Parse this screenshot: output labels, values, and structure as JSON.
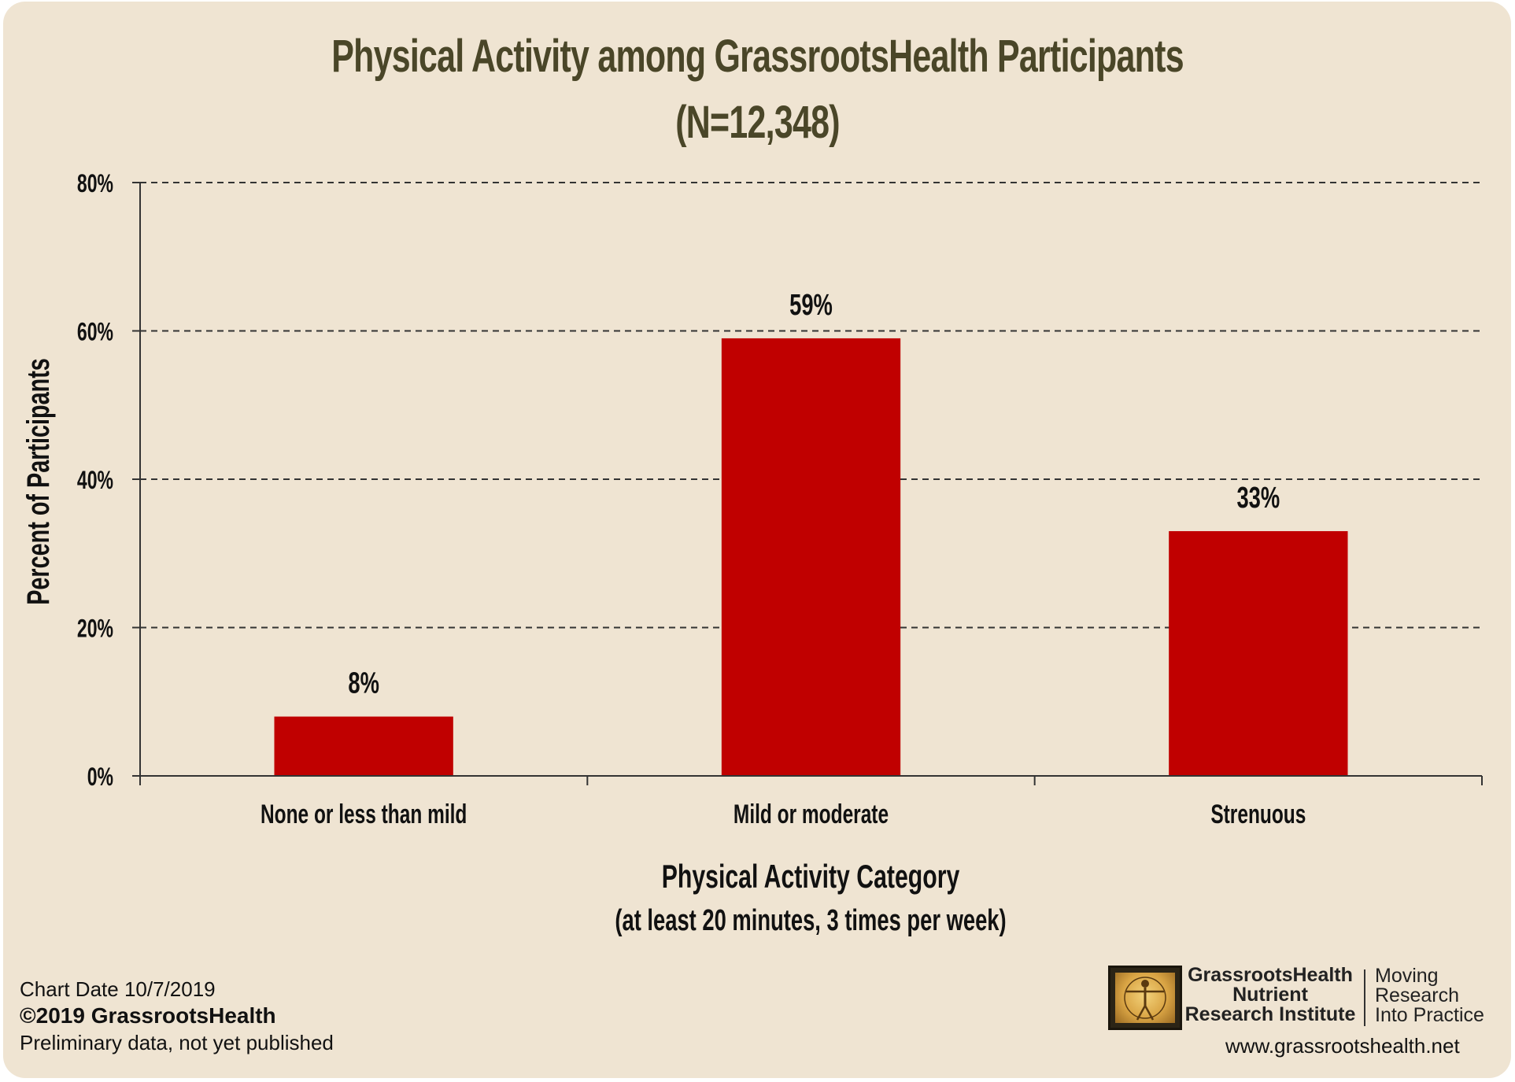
{
  "chart_data": {
    "type": "bar",
    "title": "Physical Activity among GrassrootsHealth Participants",
    "subtitle": "(N=12,348)",
    "categories": [
      "None or less than mild",
      "Mild or moderate",
      "Strenuous"
    ],
    "values": [
      8,
      59,
      33
    ],
    "data_labels": [
      "8%",
      "59%",
      "33%"
    ],
    "ylabel": "Percent of Participants",
    "xlabel": "Physical Activity Category",
    "xlabel_sub": "(at least 20 minutes, 3 times per week)",
    "ylim": [
      0,
      80
    ],
    "yticks": [
      0,
      20,
      40,
      60,
      80
    ],
    "ytick_labels": [
      "0%",
      "20%",
      "40%",
      "60%",
      "80%"
    ],
    "grid": "horizontal dashed",
    "bar_color": "#c00000",
    "background_color": "#efe4d2"
  },
  "footer": {
    "chart_date": "Chart Date  10/7/2019",
    "copyright": "©2019 GrassrootsHealth",
    "note": "Preliminary data, not yet published",
    "org_line1": "GrassrootsHealth",
    "org_line2": "Nutrient",
    "org_line3": "Research Institute",
    "tagline_line1": "Moving",
    "tagline_line2": "Research",
    "tagline_line3": "Into Practice",
    "website": "www.grassrootshealth.net"
  }
}
